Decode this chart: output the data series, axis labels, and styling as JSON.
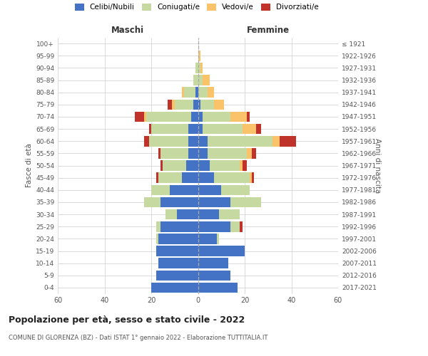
{
  "age_groups": [
    "0-4",
    "5-9",
    "10-14",
    "15-19",
    "20-24",
    "25-29",
    "30-34",
    "35-39",
    "40-44",
    "45-49",
    "50-54",
    "55-59",
    "60-64",
    "65-69",
    "70-74",
    "75-79",
    "80-84",
    "85-89",
    "90-94",
    "95-99",
    "100+"
  ],
  "birth_years": [
    "2017-2021",
    "2012-2016",
    "2007-2011",
    "2002-2006",
    "1997-2001",
    "1992-1996",
    "1987-1991",
    "1982-1986",
    "1977-1981",
    "1972-1976",
    "1967-1971",
    "1962-1966",
    "1957-1961",
    "1952-1956",
    "1947-1951",
    "1942-1946",
    "1937-1941",
    "1932-1936",
    "1927-1931",
    "1922-1926",
    "≤ 1921"
  ],
  "maschi": {
    "celibi": [
      20,
      18,
      17,
      18,
      17,
      16,
      9,
      16,
      12,
      7,
      5,
      4,
      4,
      4,
      3,
      2,
      1,
      0,
      0,
      0,
      0
    ],
    "coniugati": [
      0,
      0,
      0,
      0,
      1,
      2,
      5,
      7,
      8,
      10,
      10,
      12,
      17,
      16,
      19,
      8,
      5,
      2,
      1,
      0,
      0
    ],
    "vedovi": [
      0,
      0,
      0,
      0,
      0,
      0,
      0,
      0,
      0,
      0,
      0,
      0,
      0,
      0,
      1,
      1,
      1,
      0,
      0,
      0,
      0
    ],
    "divorziati": [
      0,
      0,
      0,
      0,
      0,
      0,
      0,
      0,
      0,
      1,
      1,
      1,
      2,
      1,
      4,
      2,
      0,
      0,
      0,
      0,
      0
    ]
  },
  "femmine": {
    "nubili": [
      17,
      14,
      13,
      20,
      8,
      14,
      9,
      14,
      10,
      7,
      5,
      4,
      4,
      2,
      2,
      1,
      0,
      0,
      0,
      0,
      0
    ],
    "coniugate": [
      0,
      0,
      0,
      0,
      1,
      4,
      9,
      13,
      12,
      15,
      13,
      17,
      28,
      17,
      12,
      6,
      4,
      2,
      1,
      0,
      0
    ],
    "vedove": [
      0,
      0,
      0,
      0,
      0,
      0,
      0,
      0,
      0,
      1,
      1,
      2,
      3,
      6,
      7,
      4,
      3,
      3,
      1,
      1,
      0
    ],
    "divorziate": [
      0,
      0,
      0,
      0,
      0,
      1,
      0,
      0,
      0,
      1,
      2,
      2,
      7,
      2,
      1,
      0,
      0,
      0,
      0,
      0,
      0
    ]
  },
  "colors": {
    "celibi": "#4472c4",
    "coniugati": "#c6d9a0",
    "vedovi": "#fac36a",
    "divorziati": "#c0332a"
  },
  "legend_labels": [
    "Celibi/Nubili",
    "Coniugati/e",
    "Vedovi/e",
    "Divorziati/e"
  ],
  "xlim": 60,
  "title": "Popolazione per età, sesso e stato civile - 2022",
  "subtitle": "COMUNE DI GLORENZA (BZ) - Dati ISTAT 1° gennaio 2022 - Elaborazione TUTTITALIA.IT",
  "ylabel_left": "Fasce di età",
  "ylabel_right": "Anni di nascita",
  "xlabel_maschi": "Maschi",
  "xlabel_femmine": "Femmine",
  "bg_color": "#ffffff",
  "grid_color": "#cccccc",
  "bar_height": 0.85
}
